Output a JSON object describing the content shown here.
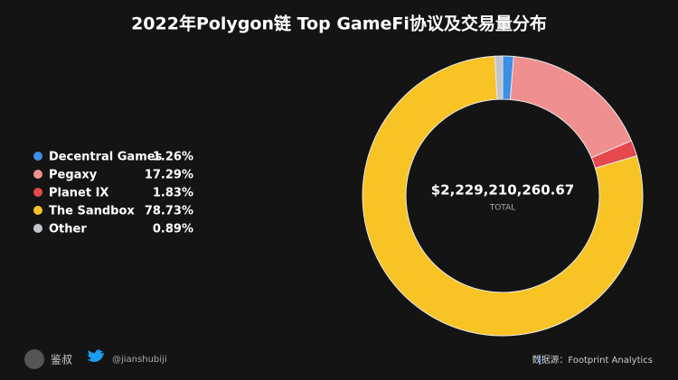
{
  "chart_data": {
    "type": "donut",
    "title": "2022年Polygon链 Top GameFi协议及交易量分布",
    "categories": [
      "Decentral Games",
      "Pegaxy",
      "Planet IX",
      "The Sandbox",
      "Other"
    ],
    "values": [
      1.26,
      17.29,
      1.83,
      78.73,
      0.89
    ],
    "value_labels": [
      "1.26%",
      "17.29%",
      "1.83%",
      "78.73%",
      "0.89%"
    ],
    "colors": [
      "#3b8fe4",
      "#f08f8f",
      "#e5484d",
      "#f7c325",
      "#c0c6cc"
    ],
    "center_value": "$2,229,210,260.67",
    "center_label": "TOTAL"
  },
  "footer": {
    "author": "鉴叔",
    "handle": "@jianshubiji",
    "source": "数据源：Footprint Analytics"
  }
}
